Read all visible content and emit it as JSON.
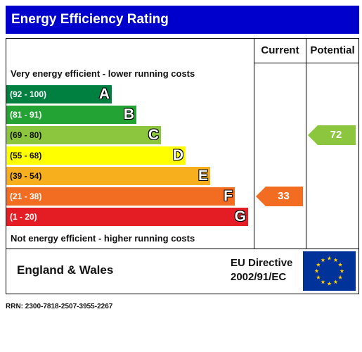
{
  "title": "Energy Efficiency Rating",
  "headers": {
    "current": "Current",
    "potential": "Potential"
  },
  "scale": {
    "top_caption": "Very energy efficient - lower running costs",
    "bottom_caption": "Not energy efficient - higher running costs"
  },
  "bands": [
    {
      "range": "(92 - 100)",
      "letter": "A",
      "color": "#008040"
    },
    {
      "range": "(81 - 91)",
      "letter": "B",
      "color": "#23a334"
    },
    {
      "range": "(69 - 80)",
      "letter": "C",
      "color": "#8cc63e"
    },
    {
      "range": "(55 - 68)",
      "letter": "D",
      "color": "#ffff00"
    },
    {
      "range": "(39 - 54)",
      "letter": "E",
      "color": "#f7af1d"
    },
    {
      "range": "(21 - 38)",
      "letter": "F",
      "color": "#f26d21"
    },
    {
      "range": "(1 - 20)",
      "letter": "G",
      "color": "#e31d23"
    }
  ],
  "ratings": {
    "current": {
      "value": "33",
      "band": "F",
      "color": "#f26d21"
    },
    "potential": {
      "value": "72",
      "band": "C",
      "color": "#8cc63e"
    }
  },
  "footer": {
    "region": "England & Wales",
    "directive_line1": "EU Directive",
    "directive_line2": "2002/91/EC",
    "flag_colors": {
      "background": "#003399",
      "stars": "#ffcc00"
    }
  },
  "rrn": "RRN: 2300-7818-2507-3955-2267"
}
